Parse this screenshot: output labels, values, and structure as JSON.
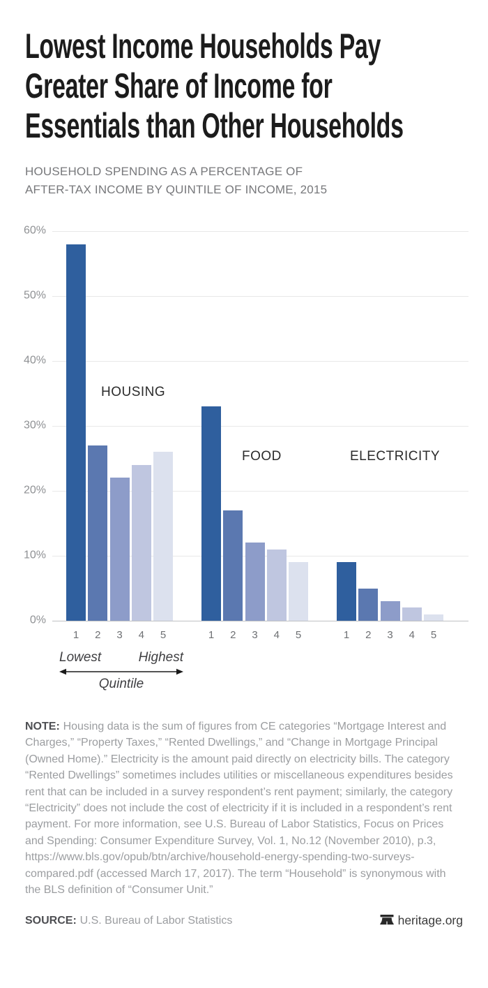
{
  "header": {
    "title_lines": [
      "Lowest Income Households Pay",
      "Greater Share of Income for",
      "Essentials than Other Households"
    ],
    "subtitle_lines": [
      "HOUSEHOLD SPENDING AS A PERCENTAGE OF",
      "AFTER-TAX INCOME BY QUINTILE OF INCOME, 2015"
    ]
  },
  "chart_data": {
    "type": "bar",
    "title": "Household spending as a percentage of after-tax income by quintile of income, 2015",
    "categories": [
      "1",
      "2",
      "3",
      "4",
      "5"
    ],
    "series": [
      {
        "name": "HOUSING",
        "values": [
          58,
          27,
          22,
          24,
          26
        ]
      },
      {
        "name": "FOOD",
        "values": [
          33,
          17,
          12,
          11,
          9
        ]
      },
      {
        "name": "ELECTRICITY",
        "values": [
          9,
          5,
          3,
          2,
          1
        ]
      }
    ],
    "xlabel": "Quintile",
    "ylabel": "",
    "ylim": [
      0,
      60
    ],
    "ytick_step": 10,
    "ytick_labels": [
      "0%",
      "10%",
      "20%",
      "30%",
      "40%",
      "50%",
      "60%"
    ],
    "grid": "horizontal",
    "legend_position": "none",
    "bar_colors": [
      "#2f5f9e",
      "#5b78b0",
      "#8d9cc9",
      "#bfc6e0",
      "#dce1ee"
    ],
    "quintile_annotation": {
      "low": "Lowest",
      "high": "Highest",
      "axis_label": "Quintile"
    }
  },
  "note": {
    "label": "NOTE:",
    "text": "Housing data is the sum of figures from CE categories “Mortgage Interest and Charges,” “Property Taxes,” “Rented Dwellings,” and “Change in Mortgage Principal (Owned Home).” Electricity is the amount paid directly on electricity bills. The category “Rented Dwellings” sometimes includes utilities or miscellaneous expenditures besides rent that can be included in a survey respondent’s rent payment; similarly, the category “Electricity” does not include the cost of electricity if it is included in a respondent’s rent payment. For more information, see U.S. Bureau of Labor Statistics, Focus on Prices and Spending: Consumer Expenditure Survey, Vol. 1, No.12 (November 2010), p.3,  https://www.bls.gov/opub/btn/archive/household-energy-spending-two-surveys-compared.pdf (accessed March 17, 2017). The term “Household” is synonymous with the BLS definition of “Consumer Unit.”"
  },
  "source": {
    "label": "SOURCE:",
    "text": "U.S. Bureau of Labor Statistics"
  },
  "footer": {
    "site": "heritage.org"
  },
  "icons": {
    "footer_logo": "liberty-bell-icon",
    "quintile_arrow": "double-arrow-icon"
  }
}
